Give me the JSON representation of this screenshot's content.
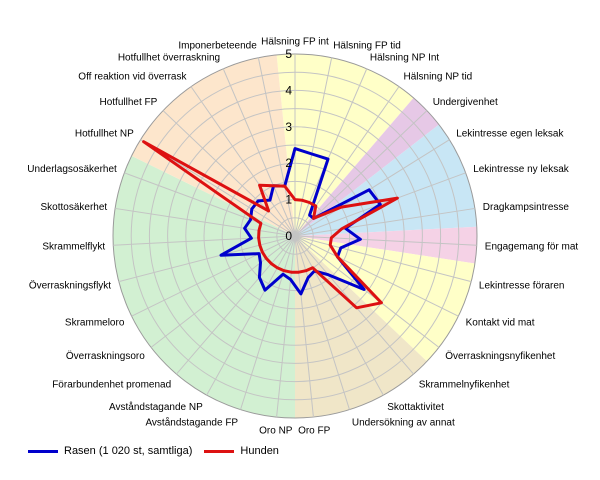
{
  "chart_data": {
    "type": "radar",
    "r_range": [
      0,
      5
    ],
    "r_ticks": [
      "0",
      "1",
      "2",
      "3",
      "4",
      "5"
    ],
    "categories": [
      "Hälsning FP int",
      "Hälsning FP tid",
      "Hälsning NP Int",
      "Hälsning NP tid",
      "Undergivenhet",
      "Lekintresse egen leksak",
      "Lekintresse ny leksak",
      "Dragkampsintresse",
      "Engagemang för mat",
      "Lekintresse föraren",
      "Kontakt vid mat",
      "Överraskningsnyfikenhet",
      "Skrammelnyfikenhet",
      "Skottaktivitet",
      "Undersökning av annat",
      "Oro FP",
      "Oro NP",
      "Avståndstagande FP",
      "Avståndstagande NP",
      "Förarbundenhet promenad",
      "Överraskningsoro",
      "Skrammeloro",
      "Överraskningsflykt",
      "Skrammelflykt",
      "Skottosäkerhet",
      "Underlagsosäkerhet",
      "Hotfullhet NP",
      "Hotfullhet FP",
      "Off reaktion vid överrask",
      "Hotfullhet överraskning",
      "Imponerbeteende"
    ],
    "sectors": [
      {
        "from": 0,
        "to": 3,
        "color": "#ffffc8"
      },
      {
        "from": 4,
        "to": 4,
        "color": "#e6c8e6"
      },
      {
        "from": 5,
        "to": 7,
        "color": "#c8e6f5"
      },
      {
        "from": 8,
        "to": 8,
        "color": "#f5d2e6"
      },
      {
        "from": 9,
        "to": 11,
        "color": "#ffffc8"
      },
      {
        "from": 12,
        "to": 15,
        "color": "#f0e6c8"
      },
      {
        "from": 16,
        "to": 25,
        "color": "#d2f0d2"
      },
      {
        "from": 26,
        "to": 30,
        "color": "#fde6cc"
      }
    ],
    "series": [
      {
        "name": "Rasen (1 020 st, samtliga)",
        "color": "#0000cc",
        "values": [
          2.4,
          2.3,
          2.3,
          0.7,
          0.7,
          2.4,
          2.5,
          1.4,
          1.8,
          1.3,
          1.3,
          2.4,
          1.4,
          1.1,
          1.2,
          1.6,
          1.2,
          1.1,
          1.7,
          1.5,
          1.2,
          1.1,
          2.1,
          1.2,
          1.4,
          1.3,
          1.4,
          1.4,
          1.2,
          1.5,
          1.4
        ]
      },
      {
        "name": "Hunden",
        "color": "#dd1111",
        "values": [
          1.0,
          1.0,
          1.0,
          1.0,
          0.7,
          1.5,
          3.0,
          1.3,
          1.0,
          1.0,
          1.3,
          3.0,
          2.6,
          1.0,
          1.0,
          1.0,
          1.0,
          1.0,
          1.0,
          1.0,
          1.0,
          1.0,
          1.0,
          1.0,
          1.0,
          1.0,
          4.9,
          1.0,
          1.7,
          1.5,
          1.4
        ]
      }
    ],
    "grid": true,
    "legend_position": "bottom-left"
  }
}
